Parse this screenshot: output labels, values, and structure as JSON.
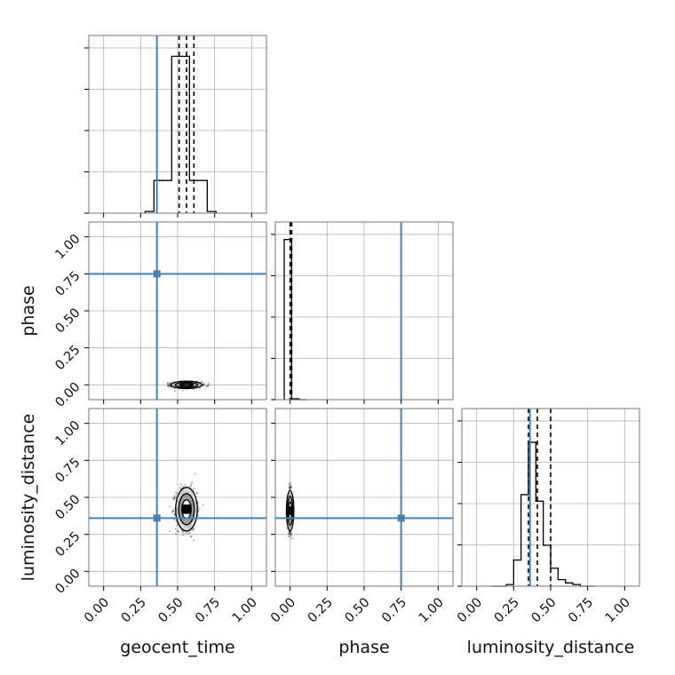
{
  "chart_data": {
    "type": "corner",
    "parameters": [
      "geocent_time",
      "phase",
      "luminosity_distance"
    ],
    "axis_range": [
      -0.1,
      1.1
    ],
    "ticks": [
      0.0,
      0.25,
      0.5,
      0.75,
      1.0
    ],
    "tick_labels": [
      "0.00",
      "0.25",
      "0.50",
      "0.75",
      "1.00"
    ],
    "grid": true,
    "truths": {
      "geocent_time": 0.36,
      "phase": 0.75,
      "luminosity_distance": 0.36
    },
    "truth_color": "#4682b4",
    "histograms": [
      {
        "parameter": "geocent_time",
        "edges": [
          0.28,
          0.34,
          0.4,
          0.46,
          0.52,
          0.58,
          0.64,
          0.7,
          0.76
        ],
        "heights": [
          0.01,
          0.2,
          0.2,
          0.96,
          0.96,
          0.2,
          0.2,
          0.01
        ],
        "quantiles": [
          0.51,
          0.56,
          0.61
        ]
      },
      {
        "parameter": "phase",
        "edges": [
          -0.04,
          0.01,
          0.06,
          0.11
        ],
        "heights": [
          0.98,
          0.005,
          0.0
        ],
        "quantiles": [
          0.0,
          0.01,
          0.01
        ]
      },
      {
        "parameter": "luminosity_distance",
        "edges": [
          0.1,
          0.15,
          0.2,
          0.25,
          0.3,
          0.35,
          0.4,
          0.45,
          0.5,
          0.55,
          0.6,
          0.65,
          0.7,
          0.75,
          0.8
        ],
        "heights": [
          0.0,
          0.0,
          0.01,
          0.16,
          0.56,
          0.88,
          0.52,
          0.25,
          0.11,
          0.04,
          0.02,
          0.01,
          0.0,
          0.0
        ],
        "quantiles": [
          0.35,
          0.41,
          0.5
        ]
      }
    ],
    "scatter_panels": [
      {
        "x": "geocent_time",
        "y": "phase",
        "center": [
          0.56,
          0.0
        ],
        "spread": [
          0.05,
          0.01
        ]
      },
      {
        "x": "geocent_time",
        "y": "luminosity_distance",
        "center": [
          0.56,
          0.42
        ],
        "spread": [
          0.035,
          0.07
        ]
      },
      {
        "x": "phase",
        "y": "luminosity_distance",
        "center": [
          0.0,
          0.41
        ],
        "spread": [
          0.006,
          0.065
        ]
      }
    ]
  }
}
